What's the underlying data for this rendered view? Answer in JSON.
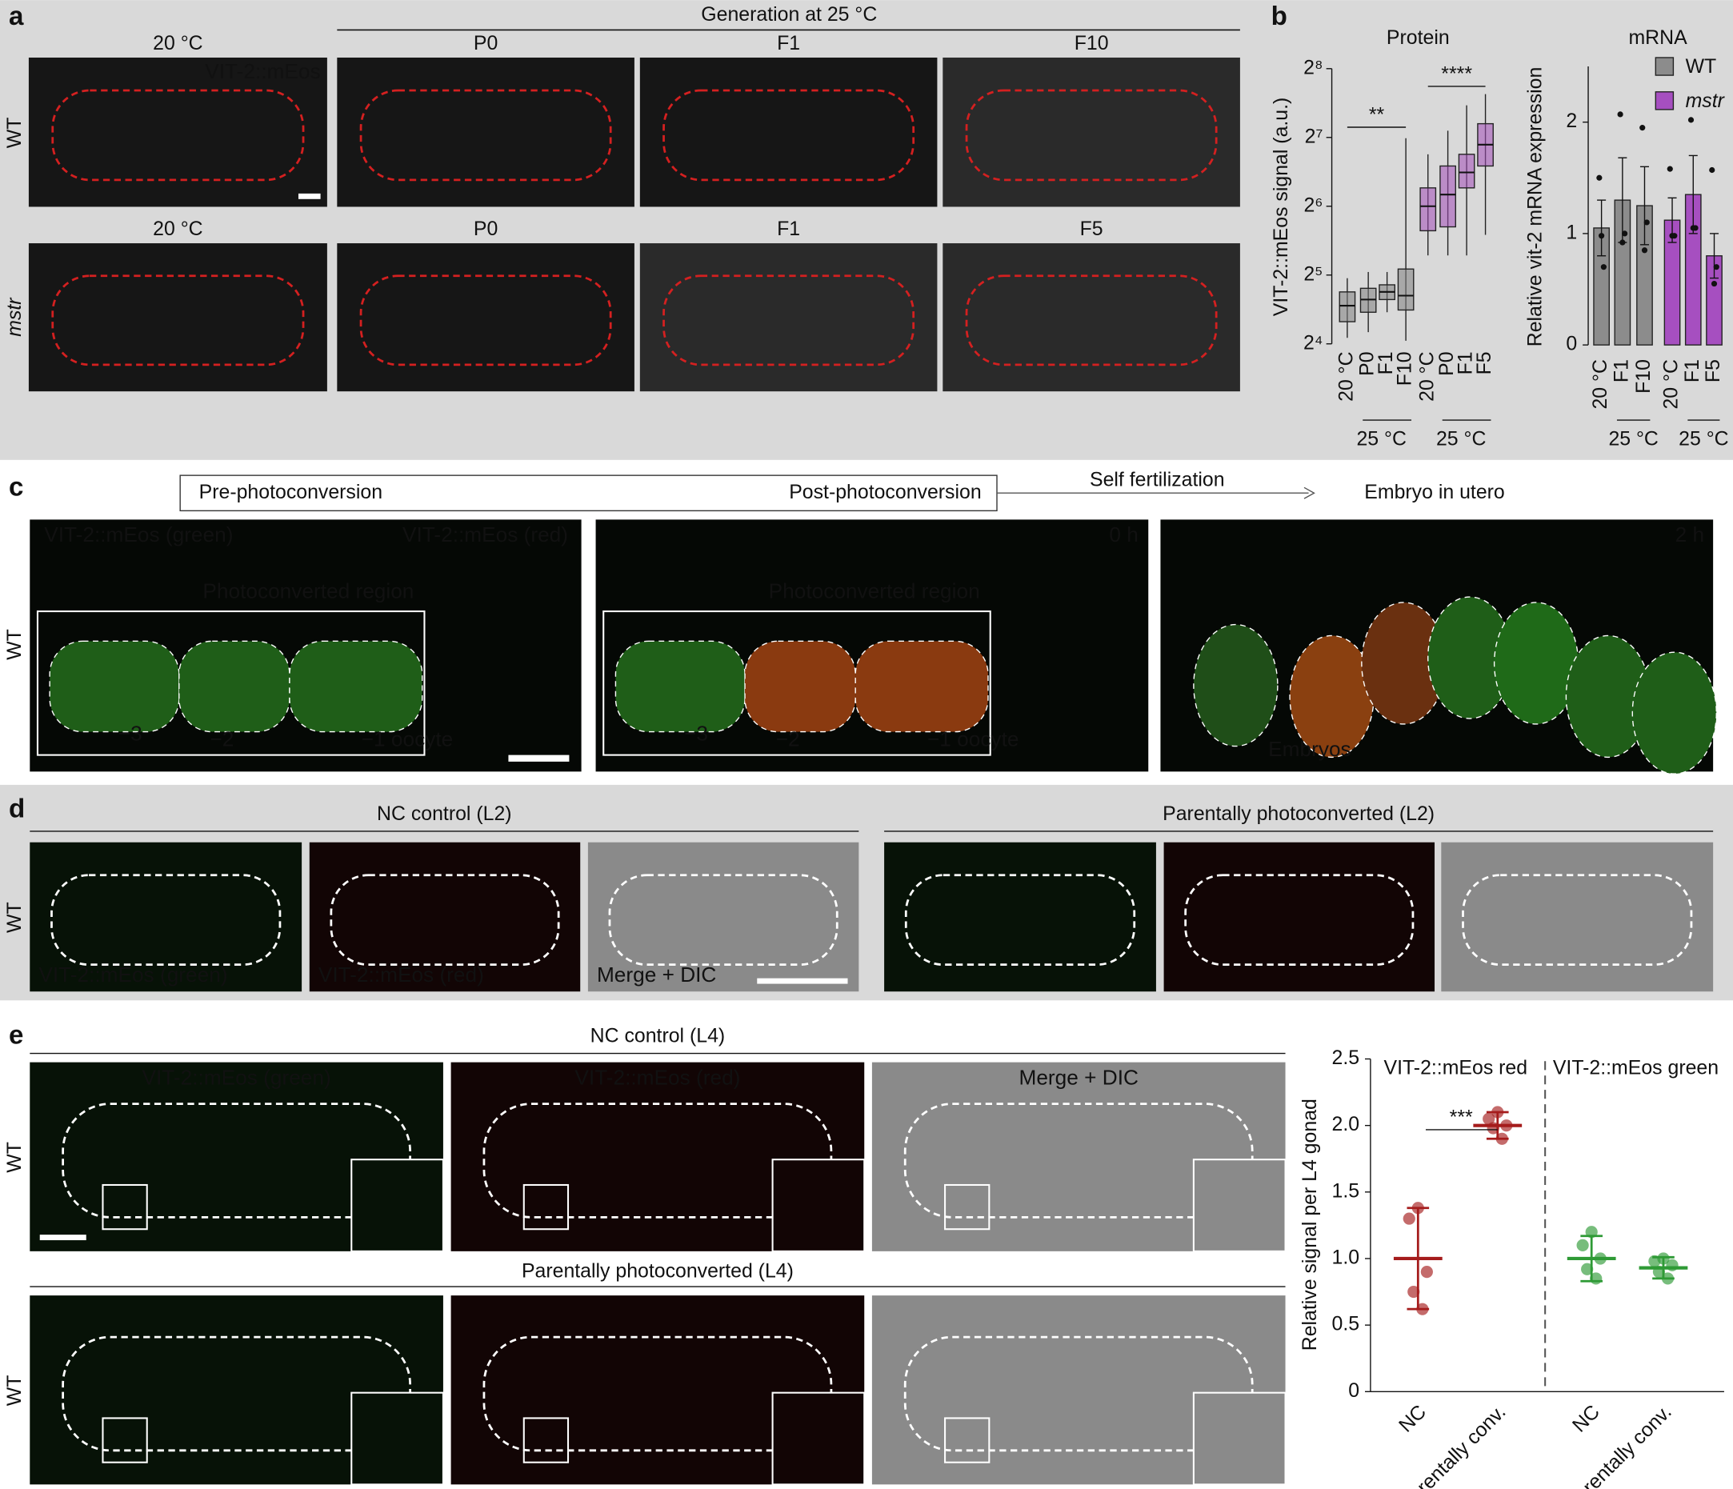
{
  "panel_a": {
    "label": "a",
    "header": "Generation at 25 °C",
    "marker": "VIT-2::mEos",
    "rows": [
      {
        "genotype": "WT",
        "columns": [
          "20 °C",
          "P0",
          "F1",
          "F10"
        ]
      },
      {
        "genotype": "mstr",
        "columns": [
          "20 °C",
          "P0",
          "F1",
          "F5"
        ]
      }
    ]
  },
  "panel_b": {
    "label": "b"
  },
  "panel_c": {
    "label": "c",
    "steps": [
      "Pre-photoconversion",
      "Post-photoconversion",
      "Self fertilization",
      "Embryo in utero"
    ],
    "row_label": "WT",
    "green_label": "VIT-2::mEos (green)",
    "red_label": "VIT-2::mEos (red)",
    "region_label": "Photoconverted region",
    "oocytes": [
      "−3",
      "−2",
      "−1 oocyte"
    ],
    "times": [
      "0 h",
      "2 h"
    ],
    "embryos_label": "Embryos"
  },
  "panel_d": {
    "label": "d",
    "row_label": "WT",
    "groups": [
      "NC control (L2)",
      "Parentally photoconverted (L2)"
    ],
    "channels": [
      "VIT-2::mEos (green)",
      "VIT-2::mEos (red)",
      "Merge + DIC"
    ]
  },
  "panel_e": {
    "label": "e",
    "row_labels": [
      "WT",
      "WT"
    ],
    "groups": [
      "NC control (L4)",
      "Parentally photoconverted (L4)"
    ],
    "channels": [
      "VIT-2::mEos (green)",
      "VIT-2::mEos (red)",
      "Merge + DIC"
    ]
  },
  "chart_data": [
    {
      "type": "box",
      "title": "Protein",
      "y_label": "VIT-2::mEos signal (a.u.)",
      "yscale": "log",
      "log_base": 2,
      "ylim": [
        16,
        256
      ],
      "yticks": [
        {
          "value": 16,
          "label": "2⁴"
        },
        {
          "value": 32,
          "label": "2⁵"
        },
        {
          "value": 64,
          "label": "2⁶"
        },
        {
          "value": 128,
          "label": "2⁷"
        },
        {
          "value": 256,
          "label": "2⁸"
        }
      ],
      "groups": [
        {
          "name": "WT",
          "color": "#7f7f7f",
          "categories": [
            "20 °C",
            "P0",
            "F1",
            "F10"
          ],
          "boxes": [
            {
              "min": 17,
              "q1": 20,
              "median": 23.5,
              "q3": 27,
              "max": 31
            },
            {
              "min": 18,
              "q1": 22,
              "median": 25,
              "q3": 28,
              "max": 33
            },
            {
              "min": 22,
              "q1": 25,
              "median": 27,
              "q3": 29,
              "max": 33
            },
            {
              "min": 16.5,
              "q1": 22.5,
              "median": 26,
              "q3": 34,
              "max": 127
            }
          ]
        },
        {
          "name": "mstr",
          "color": "#a34db8",
          "categories": [
            "20 °C",
            "P0",
            "F1",
            "F5"
          ],
          "boxes": [
            {
              "min": 39,
              "q1": 50,
              "median": 64,
              "q3": 77,
              "max": 108
            },
            {
              "min": 39,
              "q1": 52,
              "median": 72,
              "q3": 96,
              "max": 137
            },
            {
              "min": 39,
              "q1": 77,
              "median": 90,
              "q3": 108,
              "max": 177
            },
            {
              "min": 48,
              "q1": 96,
              "median": 119,
              "q3": 147,
              "max": 198
            }
          ]
        }
      ],
      "annotations": [
        "**",
        "****"
      ],
      "bracket_labels": [
        "25 °C",
        "25 °C"
      ]
    },
    {
      "type": "bar",
      "title": "mRNA",
      "y_label": "Relative vit-2 mRNA expression",
      "ylim": [
        0,
        2.5
      ],
      "yticks": [
        0,
        1,
        2
      ],
      "legend": "top-right",
      "series": [
        {
          "name": "WT",
          "color": "#8c8c8c",
          "categories": [
            "20 °C",
            "F1",
            "F10"
          ],
          "values": [
            1.05,
            1.3,
            1.25
          ],
          "errors": [
            0.25,
            0.38,
            0.35
          ],
          "points": [
            [
              1.5,
              0.98,
              0.7
            ],
            [
              2.07,
              0.92,
              1.0
            ],
            [
              1.95,
              0.85,
              1.1
            ]
          ]
        },
        {
          "name": "mstr",
          "color": "#a64fc0",
          "categories": [
            "20 °C",
            "F1",
            "F5"
          ],
          "values": [
            1.12,
            1.35,
            0.8
          ],
          "errors": [
            0.2,
            0.35,
            0.2
          ],
          "points": [
            [
              1.58,
              0.98,
              0.98
            ],
            [
              2.02,
              1.05,
              1.05
            ],
            [
              1.57,
              0.55,
              0.7
            ]
          ]
        }
      ],
      "bracket_labels": [
        "25 °C",
        "25 °C"
      ]
    },
    {
      "type": "scatter",
      "y_label": "Relative signal per L4 gonad",
      "ylim": [
        0,
        2.5
      ],
      "yticks": [
        0,
        0.5,
        {
          "value": 1,
          "label": "1.0"
        },
        1.5,
        {
          "value": 2,
          "label": "2.0"
        },
        2.5
      ],
      "categories": [
        "NC",
        "Parentally conv."
      ],
      "series": [
        {
          "name": "VIT-2::mEos red",
          "color": "#a51c1c",
          "means": [
            1.0,
            2.0
          ],
          "sd": [
            0.38,
            0.1
          ],
          "points": [
            [
              1.38,
              1.3,
              0.9,
              0.75,
              0.62
            ],
            [
              2.1,
              2.05,
              2.0,
              1.98,
              1.9
            ]
          ]
        },
        {
          "name": "VIT-2::mEos green",
          "color": "#2e9a35",
          "means": [
            1.0,
            0.93
          ],
          "sd": [
            0.17,
            0.08
          ],
          "points": [
            [
              1.2,
              1.1,
              1.0,
              0.92,
              0.85
            ],
            [
              1.0,
              0.98,
              0.95,
              0.9,
              0.85
            ]
          ]
        }
      ],
      "annotation": "***"
    }
  ]
}
